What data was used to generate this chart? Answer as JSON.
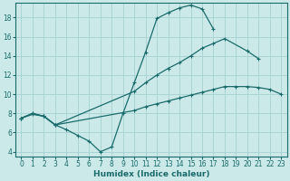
{
  "xlabel": "Humidex (Indice chaleur)",
  "bg_color": "#cce9e9",
  "grid_color": "#aad4d4",
  "line_color": "#1a6b6b",
  "xlim": [
    -0.5,
    23.5
  ],
  "ylim": [
    3.5,
    19.5
  ],
  "xticks": [
    0,
    1,
    2,
    3,
    4,
    5,
    6,
    7,
    8,
    9,
    10,
    11,
    12,
    13,
    14,
    15,
    16,
    17,
    18,
    19,
    20,
    21,
    22,
    23
  ],
  "yticks": [
    4,
    6,
    8,
    10,
    12,
    14,
    16,
    18
  ],
  "line1_x": [
    0,
    1,
    2,
    3,
    4,
    5,
    6,
    7,
    8,
    9,
    10,
    11,
    12,
    13,
    14,
    15,
    16,
    17
  ],
  "line1_y": [
    7.5,
    8.0,
    7.7,
    6.8,
    6.3,
    5.7,
    5.1,
    4.0,
    4.5,
    8.0,
    11.2,
    14.4,
    17.9,
    18.5,
    19.0,
    19.3,
    18.9,
    16.8
  ],
  "line2_x": [
    0,
    1,
    2,
    3,
    10,
    11,
    12,
    13,
    14,
    15,
    16,
    17,
    18,
    20,
    21
  ],
  "line2_y": [
    7.5,
    8.0,
    7.7,
    6.8,
    10.3,
    11.2,
    12.0,
    12.7,
    13.3,
    14.0,
    14.8,
    15.3,
    15.8,
    14.5,
    13.7
  ],
  "line3_x": [
    0,
    1,
    2,
    3,
    10,
    11,
    12,
    13,
    14,
    15,
    16,
    17,
    18,
    19,
    20,
    21,
    22,
    23
  ],
  "line3_y": [
    7.5,
    7.9,
    7.7,
    6.8,
    8.3,
    8.7,
    9.0,
    9.3,
    9.6,
    9.9,
    10.2,
    10.5,
    10.8,
    10.8,
    10.8,
    10.7,
    10.5,
    10.0
  ]
}
